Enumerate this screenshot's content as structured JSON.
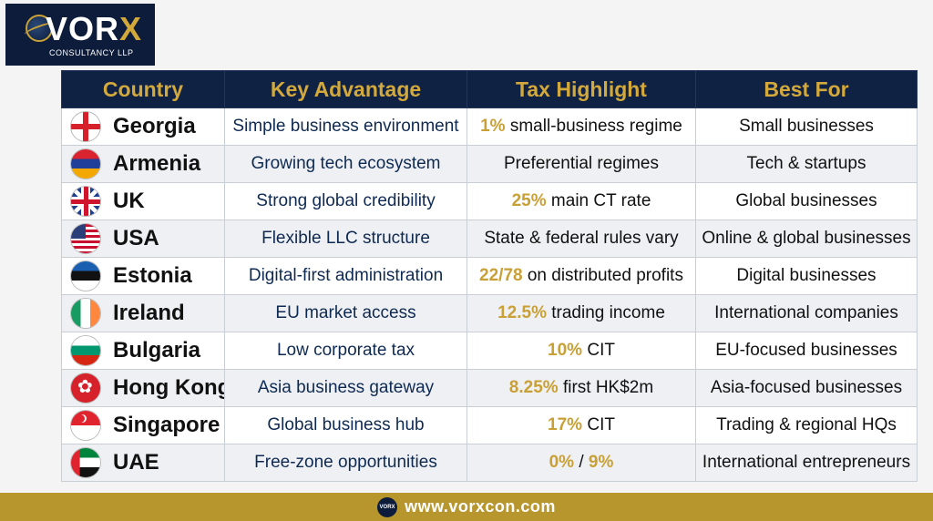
{
  "logo": {
    "brand_main": "VOR",
    "brand_accent": "X",
    "subtitle": "CONSULTANCY LLP"
  },
  "headers": [
    "Country",
    "Key Advantage",
    "Tax Highlight",
    "Best For"
  ],
  "rows": [
    {
      "flag": "georgia-flag-icon",
      "country": "Georgia",
      "advantage": "Simple business environment",
      "tax_hl": "1%",
      "tax_mid": "",
      "tax_hl2": "",
      "tax_rest": " small-business regime",
      "best": "Small businesses"
    },
    {
      "flag": "armenia-flag-icon",
      "country": "Armenia",
      "advantage": "Growing tech ecosystem",
      "tax_hl": "",
      "tax_mid": "",
      "tax_hl2": "",
      "tax_rest": "Preferential regimes",
      "best": "Tech & startups"
    },
    {
      "flag": "uk-flag-icon",
      "country": "UK",
      "advantage": "Strong global credibility",
      "tax_hl": "25%",
      "tax_mid": "",
      "tax_hl2": "",
      "tax_rest": " main CT rate",
      "best": "Global businesses"
    },
    {
      "flag": "usa-flag-icon",
      "country": "USA",
      "advantage": "Flexible LLC structure",
      "tax_hl": "",
      "tax_mid": "",
      "tax_hl2": "",
      "tax_rest": "State & federal rules vary",
      "best": "Online & global businesses"
    },
    {
      "flag": "estonia-flag-icon",
      "country": "Estonia",
      "advantage": "Digital-first administration",
      "tax_hl": "22/78",
      "tax_mid": "",
      "tax_hl2": "",
      "tax_rest": " on distributed profits",
      "best": "Digital businesses"
    },
    {
      "flag": "ireland-flag-icon",
      "country": "Ireland",
      "advantage": "EU market access",
      "tax_hl": "12.5%",
      "tax_mid": "",
      "tax_hl2": "",
      "tax_rest": " trading income",
      "best": "International companies"
    },
    {
      "flag": "bulgaria-flag-icon",
      "country": "Bulgaria",
      "advantage": "Low corporate tax",
      "tax_hl": "10%",
      "tax_mid": "",
      "tax_hl2": "",
      "tax_rest": " CIT",
      "best": "EU-focused businesses"
    },
    {
      "flag": "hongkong-flag-icon",
      "country": "Hong Kong",
      "advantage": "Asia business gateway",
      "tax_hl": "8.25%",
      "tax_mid": "",
      "tax_hl2": "",
      "tax_rest": " first HK$2m",
      "best": "Asia-focused businesses"
    },
    {
      "flag": "singapore-flag-icon",
      "country": "Singapore",
      "advantage": "Global business hub",
      "tax_hl": "17%",
      "tax_mid": "",
      "tax_hl2": "",
      "tax_rest": " CIT",
      "best": "Trading & regional HQs"
    },
    {
      "flag": "uae-flag-icon",
      "country": "UAE",
      "advantage": "Free-zone opportunities",
      "tax_hl": "0%",
      "tax_mid": " / ",
      "tax_hl2": "9%",
      "tax_rest": "",
      "best": "International entrepreneurs"
    }
  ],
  "footer": {
    "logo_text": "VORX",
    "url": "www.vorxcon.com"
  },
  "colors": {
    "navy": "#0f2243",
    "gold": "#c9a035"
  }
}
